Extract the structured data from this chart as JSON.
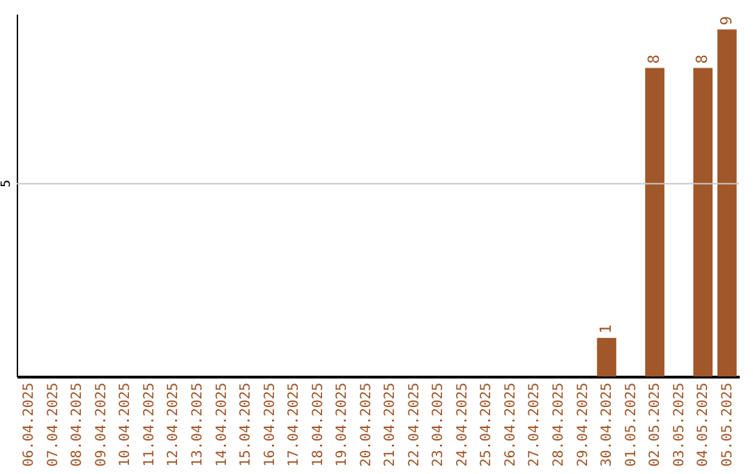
{
  "chart_data": {
    "type": "bar",
    "categories": [
      "06.04.2025",
      "07.04.2025",
      "08.04.2025",
      "09.04.2025",
      "10.04.2025",
      "11.04.2025",
      "12.04.2025",
      "13.04.2025",
      "14.04.2025",
      "15.04.2025",
      "16.04.2025",
      "17.04.2025",
      "18.04.2025",
      "19.04.2025",
      "20.04.2025",
      "21.04.2025",
      "22.04.2025",
      "23.04.2025",
      "24.04.2025",
      "25.04.2025",
      "26.04.2025",
      "27.04.2025",
      "28.04.2025",
      "29.04.2025",
      "30.04.2025",
      "01.05.2025",
      "02.05.2025",
      "03.05.2025",
      "04.05.2025",
      "05.05.2025"
    ],
    "values": [
      null,
      null,
      null,
      null,
      null,
      null,
      null,
      null,
      null,
      null,
      null,
      null,
      null,
      null,
      null,
      null,
      null,
      null,
      null,
      null,
      null,
      null,
      null,
      null,
      1,
      null,
      8,
      null,
      8,
      9
    ],
    "value_labels": [
      null,
      null,
      null,
      null,
      null,
      null,
      null,
      null,
      null,
      null,
      null,
      null,
      null,
      null,
      null,
      null,
      null,
      null,
      null,
      null,
      null,
      null,
      null,
      null,
      "1",
      null,
      "8",
      null,
      "8",
      "9"
    ],
    "color": "#a0572a",
    "ylim": [
      0,
      9.4
    ],
    "ref_lines": [
      {
        "axis": "y",
        "value": 5,
        "label": "5",
        "color": "#c8c8c8"
      }
    ]
  }
}
